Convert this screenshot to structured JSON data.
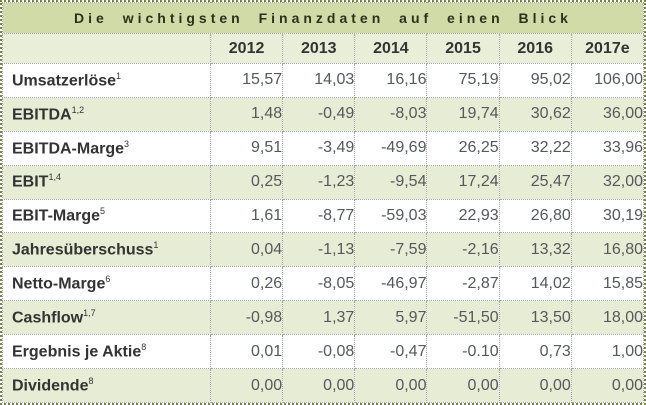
{
  "title": "Die wichtigsten Finanzdaten auf einen Blick",
  "table": {
    "columns": [
      "",
      "2012",
      "2013",
      "2014",
      "2015",
      "2016",
      "2017e"
    ],
    "rows": [
      {
        "label": "Umsatzerlöse",
        "sup": "1",
        "values": [
          "15,57",
          "14,03",
          "16,16",
          "75,19",
          "95,02",
          "106,00"
        ]
      },
      {
        "label": "EBITDA",
        "sup": "1,2",
        "values": [
          "1,48",
          "-0,49",
          "-8,03",
          "19,74",
          "30,62",
          "36,00"
        ]
      },
      {
        "label": "EBITDA-Marge",
        "sup": "3",
        "values": [
          "9,51",
          "-3,49",
          "-49,69",
          "26,25",
          "32,22",
          "33,96"
        ]
      },
      {
        "label": "EBIT",
        "sup": "1,4",
        "values": [
          "0,25",
          "-1,23",
          "-9,54",
          "17,24",
          "25,47",
          "32,00"
        ]
      },
      {
        "label": "EBIT-Marge",
        "sup": "5",
        "values": [
          "1,61",
          "-8,77",
          "-59,03",
          "22,93",
          "26,80",
          "30,19"
        ]
      },
      {
        "label": "Jahresüberschuss",
        "sup": "1",
        "values": [
          "0,04",
          "-1,13",
          "-7,59",
          "-2,16",
          "13,32",
          "16,80"
        ]
      },
      {
        "label": "Netto-Marge",
        "sup": "6",
        "values": [
          "0,26",
          "-8,05",
          "-46,97",
          "-2,87",
          "14,02",
          "15,85"
        ]
      },
      {
        "label": "Cashflow",
        "sup": "1,7",
        "values": [
          "-0,98",
          "1,37",
          "5,97",
          "-51,50",
          "13,50",
          "18,00"
        ]
      },
      {
        "label": "Ergebnis je Aktie",
        "sup": "8",
        "values": [
          "0,01",
          "-0,08",
          "-0,47",
          "-0.10",
          "0,73",
          "1,00"
        ]
      },
      {
        "label": "Dividende",
        "sup": "8",
        "values": [
          "0,00",
          "0,00",
          "0,00",
          "0,00",
          "0,00",
          "0,00"
        ]
      }
    ]
  },
  "colors": {
    "title_bg": "#d1dba8",
    "title_text": "#2c311c",
    "header_bg": "#e9eed8",
    "header_text": "#333333",
    "row_bg": "#ffffff",
    "row_alt_bg": "#e7edd5",
    "label_text": "#333333",
    "value_text": "#55585c",
    "border_outer": "#76814b",
    "border_inner": "#aaaaaa"
  }
}
